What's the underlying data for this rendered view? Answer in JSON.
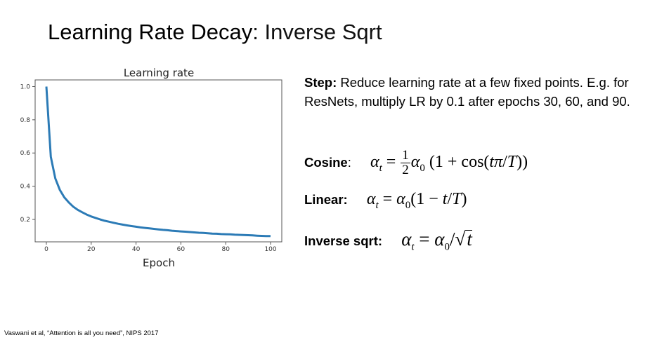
{
  "slide": {
    "title_main": "Learning Rate Decay",
    "title_sub": ": Inverse Sqrt",
    "step_label": "Step:",
    "step_text": " Reduce learning rate at a few fixed points. E.g. for ResNets, multiply LR by 0.1 after epochs 30, 60, and 90.",
    "cosine": {
      "label": "Cosine",
      "colon": ":",
      "lhs": "α",
      "lhs_sub": "t",
      "eq": " = ",
      "num": "1",
      "den": "2",
      "a0": "α",
      "a0_sub": "0",
      "rest": " (1 + cos(",
      "t": "t",
      "pi": "π",
      "slash": "/",
      "T": "T",
      "close": "))"
    },
    "linear": {
      "label": "Linear:",
      "lhs": "α",
      "lhs_sub": "t",
      "eq": " = ",
      "a0": "α",
      "a0_sub": "0",
      "open": "(1 − ",
      "t": "t",
      "slash": "/",
      "T": "T",
      "close": ")"
    },
    "invsqrt": {
      "label": "Inverse sqrt:",
      "lhs": "α",
      "lhs_sub": "t",
      "eq": " = ",
      "a0": "α",
      "a0_sub": "0",
      "slash": "/",
      "radical": "√",
      "t": "t"
    },
    "footer": "Vaswani et al, “Attention is all you need”, NIPS 2017"
  },
  "chart_data": {
    "type": "line",
    "title": "Learning rate",
    "xlabel": "Epoch",
    "ylabel": "",
    "xlim": [
      -5,
      105
    ],
    "ylim": [
      0.065,
      1.04
    ],
    "xticks": [
      0,
      20,
      40,
      60,
      80,
      100
    ],
    "yticks": [
      0.2,
      0.4,
      0.6,
      0.8,
      1.0
    ],
    "ytick_labels": [
      "0.2",
      "0.4",
      "0.6",
      "0.8",
      "1.0"
    ],
    "grid": false,
    "color": "#2c7bb6",
    "x": [
      0,
      2,
      4,
      6,
      8,
      10,
      12,
      14,
      16,
      18,
      20,
      22,
      24,
      26,
      28,
      30,
      32,
      34,
      36,
      38,
      40,
      42,
      44,
      46,
      48,
      50,
      52,
      54,
      56,
      58,
      60,
      62,
      64,
      66,
      68,
      70,
      72,
      74,
      76,
      78,
      80,
      82,
      84,
      86,
      88,
      90,
      92,
      94,
      96,
      98,
      100
    ],
    "y": [
      1.0,
      0.577,
      0.447,
      0.378,
      0.333,
      0.302,
      0.277,
      0.258,
      0.243,
      0.229,
      0.218,
      0.209,
      0.2,
      0.192,
      0.186,
      0.18,
      0.174,
      0.169,
      0.164,
      0.16,
      0.156,
      0.152,
      0.149,
      0.146,
      0.143,
      0.14,
      0.137,
      0.135,
      0.132,
      0.13,
      0.128,
      0.126,
      0.124,
      0.122,
      0.12,
      0.119,
      0.117,
      0.115,
      0.114,
      0.112,
      0.111,
      0.11,
      0.108,
      0.107,
      0.106,
      0.105,
      0.104,
      0.102,
      0.101,
      0.1,
      0.0995
    ]
  }
}
